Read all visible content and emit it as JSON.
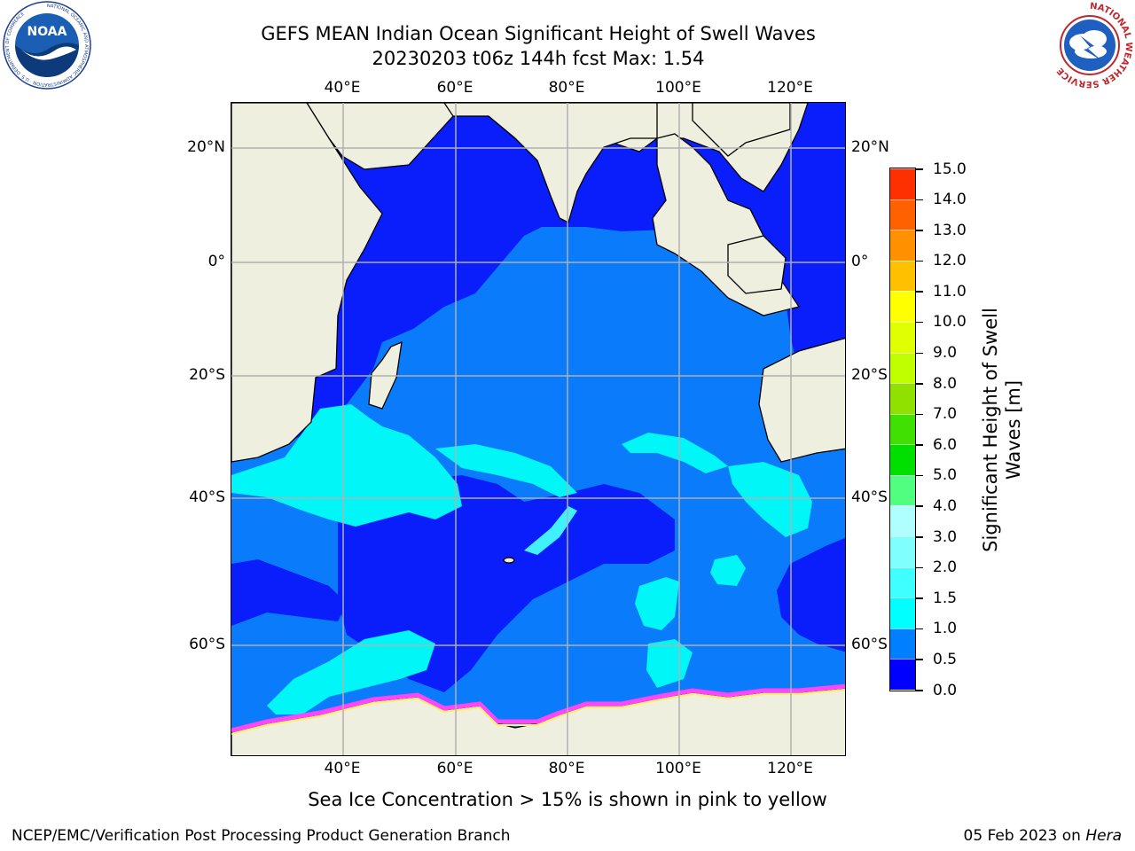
{
  "title": {
    "line1": "GEFS MEAN Indian Ocean Significant Height of Swell Waves",
    "line2": "20230203 t06z 144h fcst   Max: 1.54"
  },
  "logos": {
    "left": {
      "icon": "noaa-logo",
      "text": "NOAA",
      "ring_text": "NATIONAL OCEANIC AND ATMOSPHERIC ADMINISTRATION · U.S. DEPARTMENT OF COMMERCE"
    },
    "right": {
      "icon": "nws-logo",
      "ring_text": "NATIONAL WEATHER SERVICE"
    }
  },
  "map": {
    "lon_ticks": [
      "40°E",
      "60°E",
      "80°E",
      "100°E",
      "120°E"
    ],
    "lat_ticks": [
      "20°N",
      "0°",
      "20°S",
      "40°S",
      "60°S"
    ],
    "lon_range": [
      20,
      130
    ],
    "lat_range": [
      -73,
      28
    ],
    "lat_tick_values": [
      20,
      0,
      -20,
      -40,
      -60
    ],
    "lon_tick_values": [
      40,
      60,
      80,
      100,
      120
    ],
    "colors": {
      "land": "#efefdf",
      "ocean_0": "#0a1dfb",
      "ocean_05": "#0a7bfb",
      "ocean_10": "#00f6f7",
      "ice_pink": "#ff46ff",
      "ice_yellow": "#ffee66",
      "grid": "#b0b0b0"
    }
  },
  "colorbar": {
    "label": "Significant Height of Swell Waves [m]",
    "ticks": [
      "0.0",
      "0.5",
      "1.0",
      "1.5",
      "2.0",
      "3.0",
      "4.0",
      "5.0",
      "6.0",
      "7.0",
      "8.0",
      "9.0",
      "10.0",
      "11.0",
      "12.0",
      "13.0",
      "14.0",
      "15.0"
    ],
    "colors": [
      "#0000ff",
      "#0080ff",
      "#00ffff",
      "#40ffff",
      "#80ffff",
      "#b0ffff",
      "#50ff80",
      "#00e000",
      "#40e000",
      "#90e000",
      "#c0ff00",
      "#e0ff00",
      "#ffff00",
      "#ffc000",
      "#ff9000",
      "#ff6000",
      "#ff3000",
      "#ff0000"
    ]
  },
  "note": "Sea Ice Concentration > 15% is shown in pink to yellow",
  "footer": {
    "left": "NCEP/EMC/Verification Post Processing Product Generation Branch",
    "right_date": "05 Feb 2023 on ",
    "right_host": "Hera"
  }
}
